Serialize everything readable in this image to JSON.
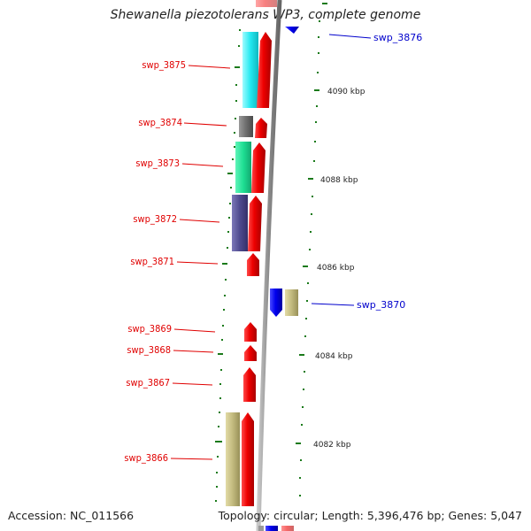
{
  "title": "Shewanella piezotolerans WP3, complete genome",
  "footer": {
    "accession": "Accession: NC_011566",
    "summary": "Topology: circular; Length: 5,396,476 bp; Genes: 5,047"
  },
  "colors": {
    "forward": "#ee0000",
    "reverse": "#0000ee",
    "backbone": "#999999",
    "tick": "#1a7a1a",
    "label_left": "#e00000",
    "label_right": "#0000cc"
  },
  "genes_left": [
    {
      "label": "swp_3875"
    },
    {
      "label": "swp_3874"
    },
    {
      "label": "swp_3873"
    },
    {
      "label": "swp_3872"
    },
    {
      "label": "swp_3871"
    },
    {
      "label": "swp_3869"
    },
    {
      "label": "swp_3868"
    },
    {
      "label": "swp_3867"
    },
    {
      "label": "swp_3866"
    }
  ],
  "genes_right": [
    {
      "label": "swp_3876"
    },
    {
      "label": "swp_3870"
    }
  ],
  "kbp_labels": [
    "4090 kbp",
    "4088 kbp",
    "4086 kbp",
    "4084 kbp",
    "4082 kbp"
  ]
}
